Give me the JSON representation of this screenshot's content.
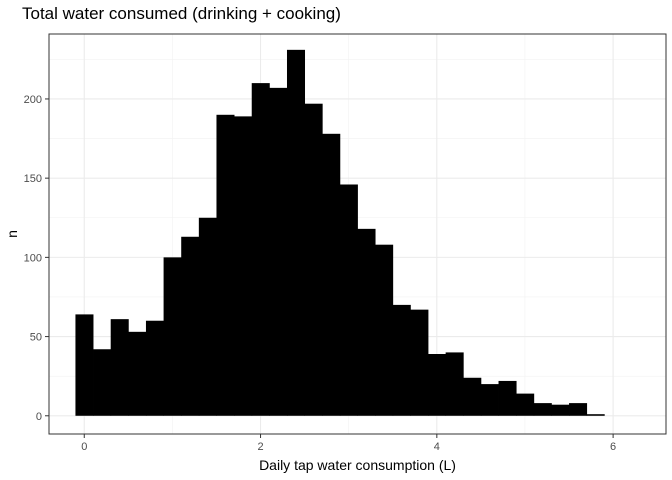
{
  "chart_data": {
    "type": "bar",
    "title": "Total water consumed (drinking + cooking)",
    "xlabel": "Daily tap water consumption (L)",
    "ylabel": "n",
    "xlim": [
      -0.4,
      6.6
    ],
    "ylim": [
      -11.5,
      241
    ],
    "xticks": [
      0,
      2,
      4,
      6
    ],
    "yticks": [
      0,
      50,
      100,
      150,
      200
    ],
    "bin_width": 0.2,
    "bin_start": -0.1,
    "values": [
      64,
      42,
      61,
      53,
      60,
      100,
      113,
      125,
      190,
      189,
      210,
      207,
      231,
      197,
      178,
      146,
      118,
      108,
      70,
      67,
      39,
      40,
      24,
      20,
      22,
      14,
      8,
      7,
      8,
      1
    ],
    "bar_color": "#000000",
    "grid": true,
    "legend": "none"
  }
}
